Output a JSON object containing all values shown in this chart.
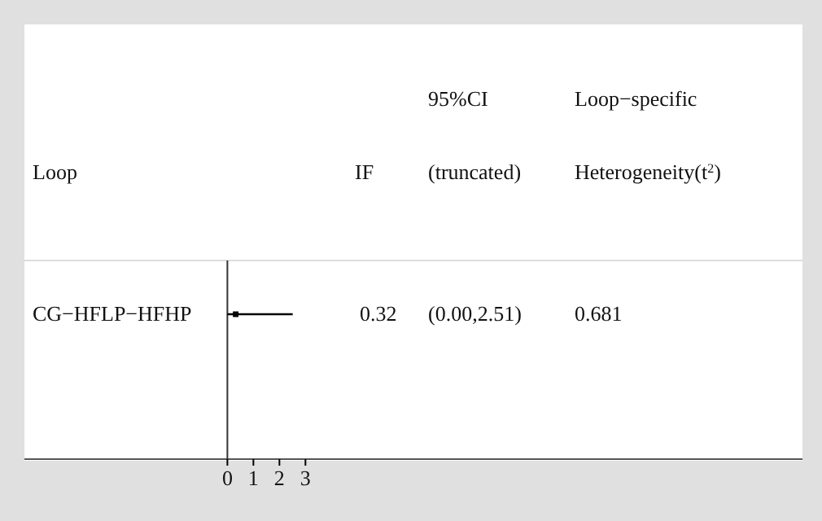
{
  "chart_data": {
    "type": "scatter",
    "orientation": "horizontal",
    "ylabel": "Loop",
    "categories": [
      "CG−HFLP−HFHP"
    ],
    "values": [
      0.32
    ],
    "errors": [
      [
        0.0,
        2.51
      ]
    ],
    "color": "#000000",
    "marker": "square",
    "xlim": [
      -7.8,
      22.1
    ],
    "xticks": [
      0,
      1,
      2,
      3
    ],
    "annotations": [
      "IF",
      "95%CI (truncated)",
      "Loop−specific Heterogeneity(t$^{2}$)",
      "0.32",
      "(0.00,2.51)",
      "0.681"
    ]
  }
}
